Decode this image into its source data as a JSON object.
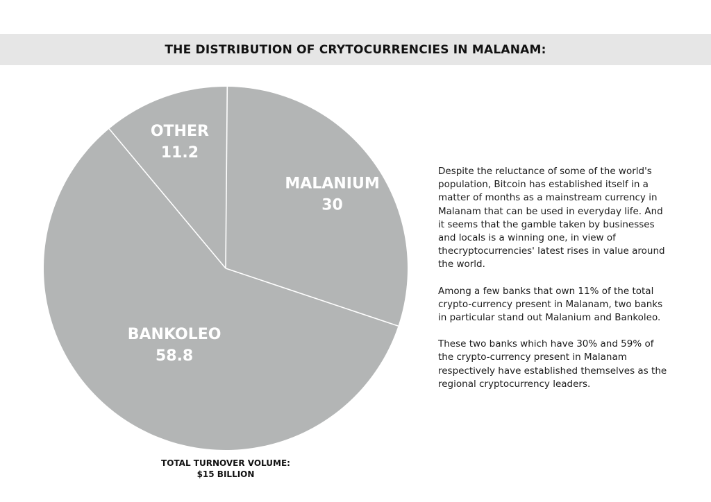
{
  "title": "THE DISTRIBUTION OF CRYTOCURRENCIES IN MALANAM:",
  "chart_data": {
    "type": "pie",
    "title": "THE DISTRIBUTION OF CRYTOCURRENCIES IN MALANAM:",
    "slices": [
      {
        "label": "MALANIUM",
        "value": 30,
        "value_text": "30"
      },
      {
        "label": "BANKOLEO",
        "value": 58.8,
        "value_text": "58.8"
      },
      {
        "label": "OTHER",
        "value": 11.2,
        "value_text": "11.2"
      }
    ],
    "colors": {
      "slice": "#b3b5b5",
      "separator": "#ffffff"
    },
    "total_label_line1": "TOTAL TURNOVER VOLUME:",
    "total_label_line2": "$15 BILLION"
  },
  "text": {
    "paragraphs": [
      "Despite the reluctance of some of the world's population, Bitcoin has established itself in a matter of months as a mainstream currency in Malanam that can be used in everyday life. And it seems that the gamble taken by businesses and locals is a winning one, in view of thecryptocurrencies' latest rises in value around the world.",
      "Among a few banks that own 11% of the total crypto-currency present in Malanam, two banks in particular stand out Malanium and Bankoleo.",
      "These two banks which have 30% and 59% of the crypto-currency present in Malanam respectively have established themselves as the regional cryptocurrency leaders."
    ]
  }
}
